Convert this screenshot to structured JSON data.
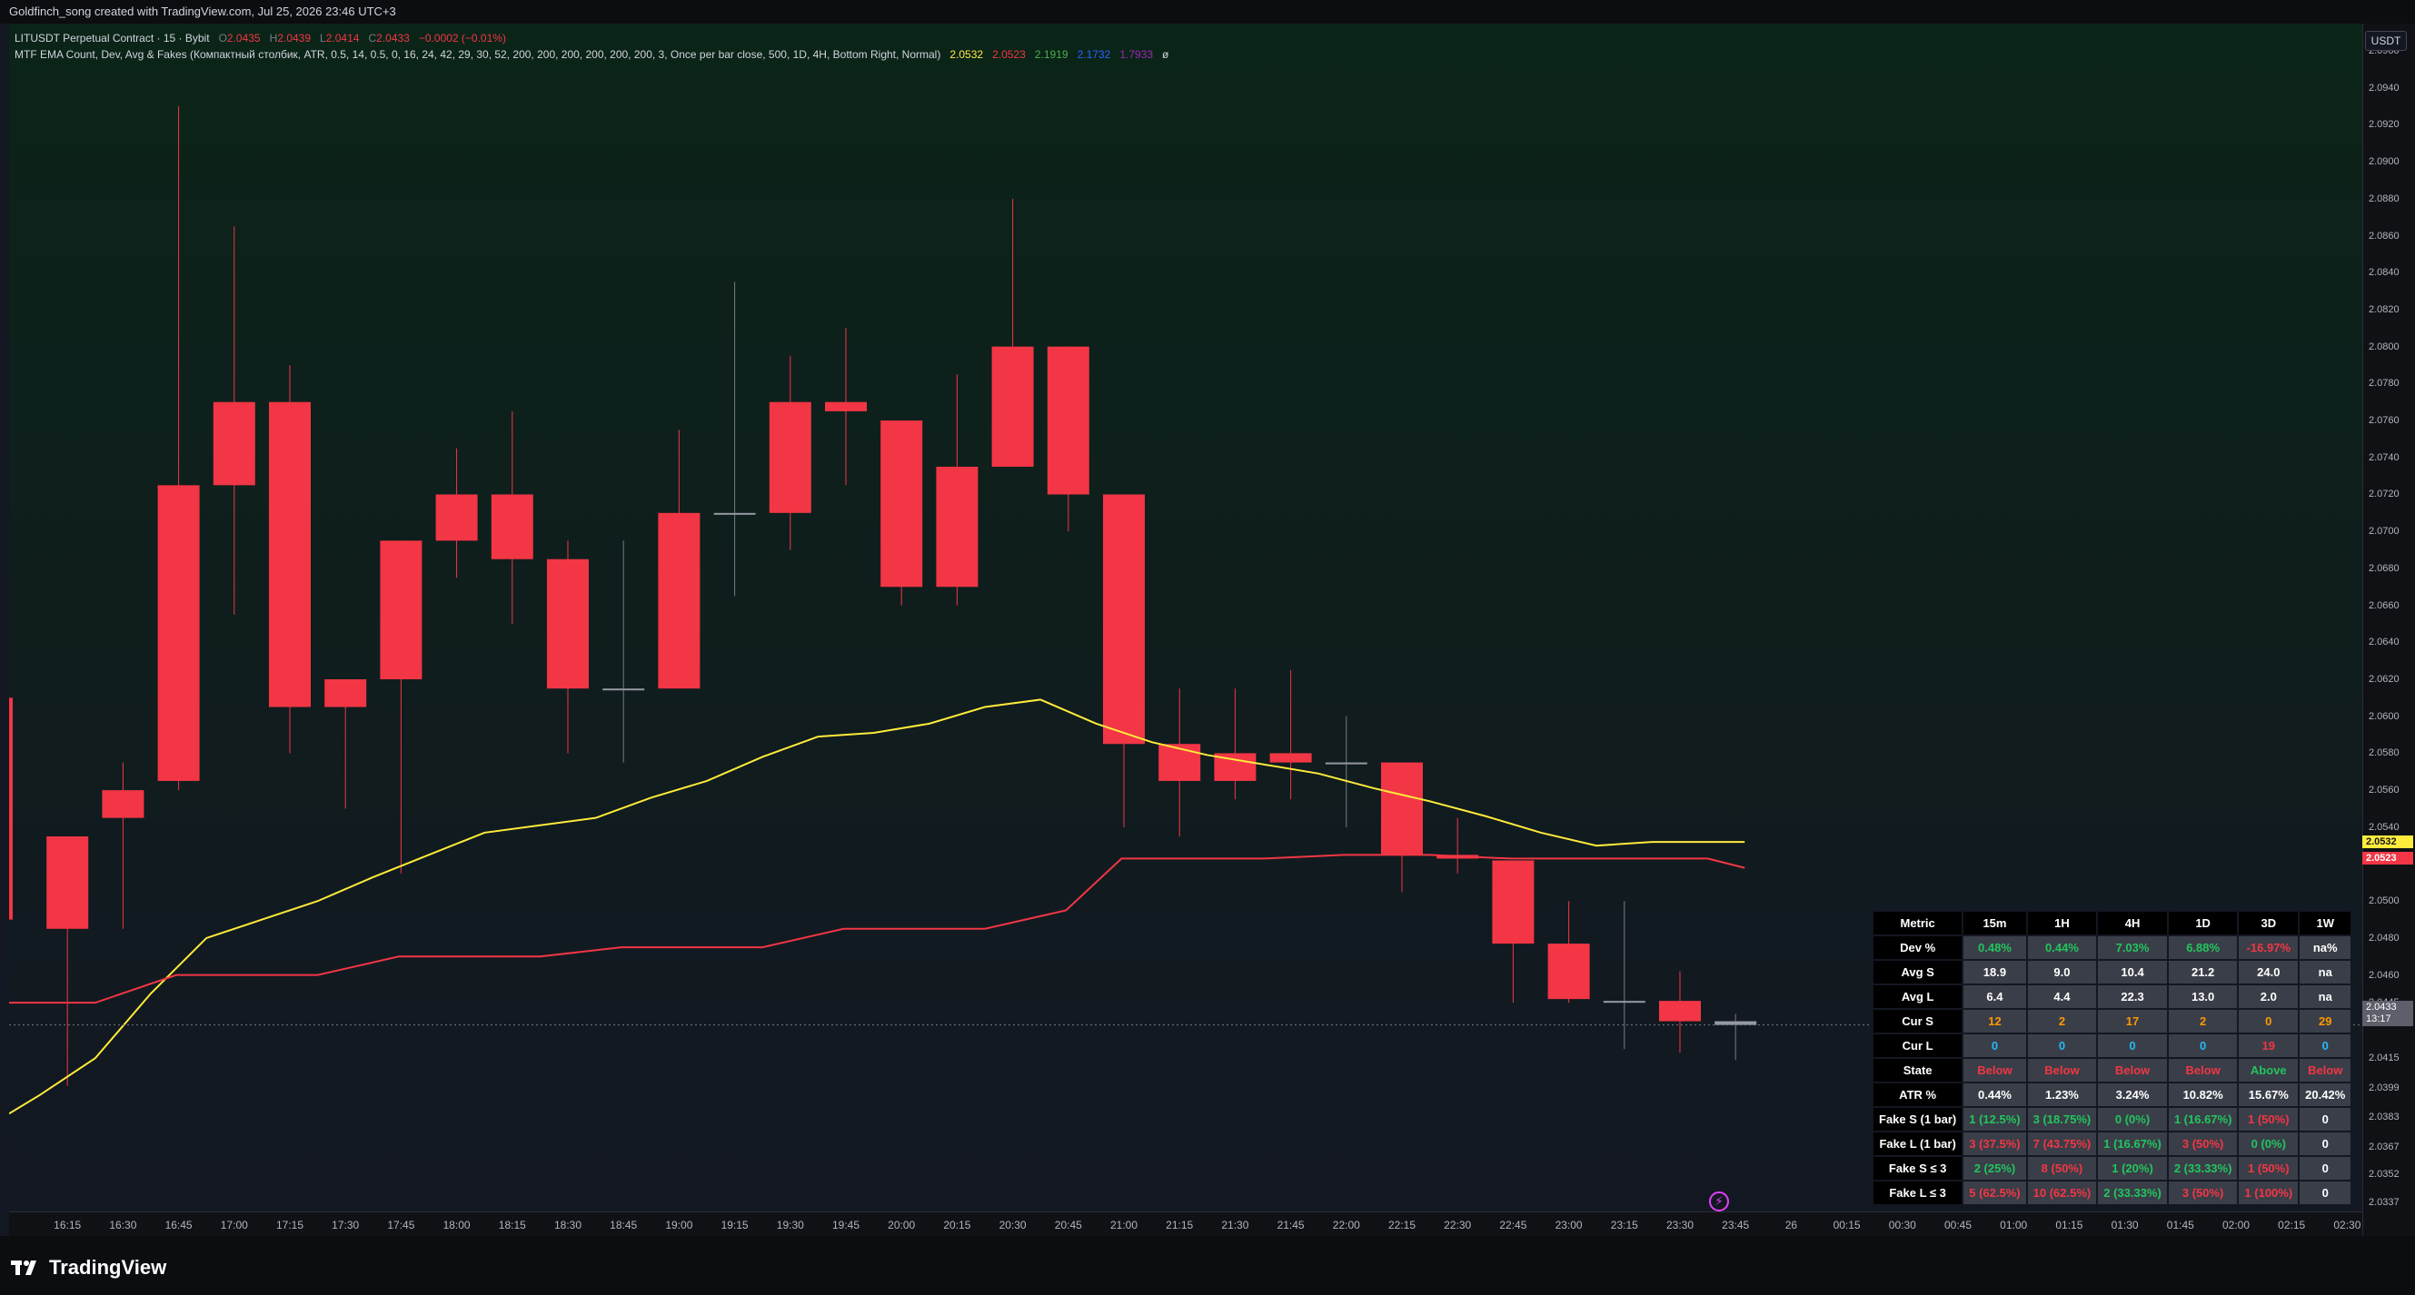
{
  "header": {
    "title": "Goldfinch_song created with TradingView.com, Jul 25, 2026 23:46 UTC+3"
  },
  "symbol_legend": {
    "symbol": "LITUSDT Perpetual Contract · 15 · Bybit",
    "o_label": "O",
    "o_value": "2.0435",
    "h_label": "H",
    "h_value": "2.0439",
    "l_label": "L",
    "l_value": "2.0414",
    "c_label": "C",
    "c_value": "2.0433",
    "change": "−0.0002 (−0.01%)"
  },
  "indicator_legend": {
    "name": "MTF EMA Count, Dev, Avg & Fakes (Компактный столбик, ATR, 0.5, 14, 0.5, 0, 16, 24, 42, 29, 30, 52, 200, 200, 200, 200, 200, 200, 3, Once per bar close, 500, 1D, 4H, Bottom Right, Normal)",
    "v1": "2.0532",
    "v2": "2.0523",
    "v3": "2.1919",
    "v4": "2.1732",
    "v5": "1.7933",
    "v6": "ø"
  },
  "price_scale": {
    "currency_button": "USDT",
    "labels": [
      "2.0960",
      "2.0940",
      "2.0920",
      "2.0900",
      "2.0880",
      "2.0860",
      "2.0840",
      "2.0820",
      "2.0800",
      "2.0780",
      "2.0760",
      "2.0740",
      "2.0720",
      "2.0700",
      "2.0680",
      "2.0660",
      "2.0640",
      "2.0620",
      "2.0600",
      "2.0580",
      "2.0560",
      "2.0540",
      "2.0500",
      "2.0480",
      "2.0460",
      "2.0445",
      "2.0415",
      "2.0399",
      "2.0383",
      "2.0367",
      "2.0352",
      "2.0337"
    ],
    "badge_ema_yellow": "2.0532",
    "badge_ema_red": "2.0523",
    "badge_current_price": "2.0433",
    "badge_countdown": "13:17"
  },
  "time_scale": {
    "labels": [
      "16:15",
      "16:30",
      "16:45",
      "17:00",
      "17:15",
      "17:30",
      "17:45",
      "18:00",
      "18:15",
      "18:30",
      "18:45",
      "19:00",
      "19:15",
      "19:30",
      "19:45",
      "20:00",
      "20:15",
      "20:30",
      "20:45",
      "21:00",
      "21:15",
      "21:30",
      "21:45",
      "22:00",
      "22:15",
      "22:30",
      "22:45",
      "23:00",
      "23:15",
      "23:30",
      "23:45",
      "26",
      "00:15",
      "00:30",
      "00:45",
      "01:00",
      "01:15",
      "01:30",
      "01:45",
      "02:00",
      "02:15",
      "02:30"
    ]
  },
  "colors": {
    "bear_candle": "#f23645",
    "bull_candle": "#26a69a",
    "ema_fast": "#ffeb3b",
    "ema_slow": "#f23645",
    "background_top": "#0b2418",
    "background_bottom": "#131722"
  },
  "chart_data": {
    "type": "candlestick",
    "timeframe": "15",
    "times": [
      "16:00",
      "16:15",
      "16:30",
      "16:45",
      "17:00",
      "17:15",
      "17:30",
      "17:45",
      "18:00",
      "18:15",
      "18:30",
      "18:45",
      "19:00",
      "19:15",
      "19:30",
      "19:45",
      "20:00",
      "20:15",
      "20:30",
      "20:45",
      "21:00",
      "21:15",
      "21:30",
      "21:45",
      "22:00",
      "22:15",
      "22:30",
      "22:45",
      "23:00",
      "23:15",
      "23:30",
      "23:45"
    ],
    "candles": [
      {
        "t": "16:00",
        "o": 2.061,
        "h": 2.061,
        "l": 2.049,
        "c": 2.049
      },
      {
        "t": "16:15",
        "o": 2.0535,
        "h": 2.0535,
        "l": 2.04,
        "c": 2.0485
      },
      {
        "t": "16:30",
        "o": 2.056,
        "h": 2.0575,
        "l": 2.0485,
        "c": 2.0545
      },
      {
        "t": "16:45",
        "o": 2.0725,
        "h": 2.093,
        "l": 2.056,
        "c": 2.0565
      },
      {
        "t": "17:00",
        "o": 2.077,
        "h": 2.0865,
        "l": 2.0655,
        "c": 2.0725
      },
      {
        "t": "17:15",
        "o": 2.077,
        "h": 2.079,
        "l": 2.058,
        "c": 2.0605
      },
      {
        "t": "17:30",
        "o": 2.062,
        "h": 2.0615,
        "l": 2.055,
        "c": 2.0605
      },
      {
        "t": "17:45",
        "o": 2.0695,
        "h": 2.0695,
        "l": 2.0515,
        "c": 2.062
      },
      {
        "t": "18:00",
        "o": 2.072,
        "h": 2.0745,
        "l": 2.0675,
        "c": 2.0695
      },
      {
        "t": "18:15",
        "o": 2.072,
        "h": 2.0765,
        "l": 2.065,
        "c": 2.0685
      },
      {
        "t": "18:30",
        "o": 2.0685,
        "h": 2.0695,
        "l": 2.058,
        "c": 2.0615
      },
      {
        "t": "18:45",
        "o": 2.0615,
        "h": 2.0695,
        "l": 2.0575,
        "c": 2.0615
      },
      {
        "t": "19:00",
        "o": 2.071,
        "h": 2.0755,
        "l": 2.0615,
        "c": 2.0615
      },
      {
        "t": "19:15",
        "o": 2.071,
        "h": 2.0835,
        "l": 2.0665,
        "c": 2.071
      },
      {
        "t": "19:30",
        "o": 2.077,
        "h": 2.0795,
        "l": 2.069,
        "c": 2.071
      },
      {
        "t": "19:45",
        "o": 2.077,
        "h": 2.081,
        "l": 2.0725,
        "c": 2.0765
      },
      {
        "t": "20:00",
        "o": 2.076,
        "h": 2.076,
        "l": 2.066,
        "c": 2.067
      },
      {
        "t": "20:15",
        "o": 2.0735,
        "h": 2.0785,
        "l": 2.066,
        "c": 2.067
      },
      {
        "t": "20:30",
        "o": 2.08,
        "h": 2.088,
        "l": 2.0735,
        "c": 2.0735
      },
      {
        "t": "20:45",
        "o": 2.08,
        "h": 2.08,
        "l": 2.07,
        "c": 2.072
      },
      {
        "t": "21:00",
        "o": 2.072,
        "h": 2.072,
        "l": 2.054,
        "c": 2.0585
      },
      {
        "t": "21:15",
        "o": 2.0585,
        "h": 2.0615,
        "l": 2.0535,
        "c": 2.0565
      },
      {
        "t": "21:30",
        "o": 2.058,
        "h": 2.0615,
        "l": 2.0555,
        "c": 2.0565
      },
      {
        "t": "21:45",
        "o": 2.058,
        "h": 2.0625,
        "l": 2.0555,
        "c": 2.0575
      },
      {
        "t": "22:00",
        "o": 2.0575,
        "h": 2.06,
        "l": 2.054,
        "c": 2.0575
      },
      {
        "t": "22:15",
        "o": 2.0575,
        "h": 2.0575,
        "l": 2.0505,
        "c": 2.0525
      },
      {
        "t": "22:30",
        "o": 2.0525,
        "h": 2.0545,
        "l": 2.0515,
        "c": 2.0523
      },
      {
        "t": "22:45",
        "o": 2.0522,
        "h": 2.0522,
        "l": 2.0445,
        "c": 2.0477
      },
      {
        "t": "23:00",
        "o": 2.0477,
        "h": 2.05,
        "l": 2.0445,
        "c": 2.0447
      },
      {
        "t": "23:15",
        "o": 2.0446,
        "h": 2.05,
        "l": 2.042,
        "c": 2.0445
      },
      {
        "t": "23:30",
        "o": 2.0446,
        "h": 2.0462,
        "l": 2.0418,
        "c": 2.0435
      },
      {
        "t": "23:45",
        "o": 2.0435,
        "h": 2.0439,
        "l": 2.0414,
        "c": 2.0433
      }
    ],
    "series": [
      {
        "values": [
          2.0385,
          2.0395,
          2.0415,
          2.045,
          2.048,
          2.049,
          2.05,
          2.0513,
          2.0525,
          2.0537,
          2.0541,
          2.0545,
          2.0556,
          2.0565,
          2.0578,
          2.0589,
          2.0591,
          2.0596,
          2.0605,
          2.0609,
          2.0596,
          2.0586,
          2.0579,
          2.0574,
          2.0569,
          2.0561,
          2.0554,
          2.0546,
          2.0537,
          2.053,
          2.0532,
          2.0532
        ]
      },
      {
        "values": [
          2.0445,
          2.0445,
          2.0445,
          2.046,
          2.046,
          2.046,
          2.046,
          2.047,
          2.047,
          2.047,
          2.047,
          2.0475,
          2.0475,
          2.0475,
          2.0475,
          2.0485,
          2.0485,
          2.0485,
          2.0485,
          2.0495,
          2.0523,
          2.0523,
          2.0523,
          2.0523,
          2.0525,
          2.0525,
          2.0525,
          2.0523,
          2.0523,
          2.0523,
          2.0523,
          2.0523
        ]
      }
    ],
    "ylim": [
      2.0337,
      2.096
    ],
    "current_price": 2.0433
  },
  "metrics_table": {
    "headers": [
      "Metric",
      "15m",
      "1H",
      "4H",
      "1D",
      "3D",
      "1W"
    ],
    "rows": [
      {
        "label": "Dev %",
        "cells": [
          {
            "v": "0.48%",
            "c": "green"
          },
          {
            "v": "0.44%",
            "c": "green"
          },
          {
            "v": "7.03%",
            "c": "green"
          },
          {
            "v": "6.88%",
            "c": "green"
          },
          {
            "v": "-16.97%",
            "c": "red"
          },
          {
            "v": "na%",
            "c": "white"
          }
        ]
      },
      {
        "label": "Avg S",
        "cells": [
          {
            "v": "18.9",
            "c": "white"
          },
          {
            "v": "9.0",
            "c": "white"
          },
          {
            "v": "10.4",
            "c": "white"
          },
          {
            "v": "21.2",
            "c": "white"
          },
          {
            "v": "24.0",
            "c": "white"
          },
          {
            "v": "na",
            "c": "white"
          }
        ]
      },
      {
        "label": "Avg L",
        "cells": [
          {
            "v": "6.4",
            "c": "white"
          },
          {
            "v": "4.4",
            "c": "white"
          },
          {
            "v": "22.3",
            "c": "white"
          },
          {
            "v": "13.0",
            "c": "white"
          },
          {
            "v": "2.0",
            "c": "white"
          },
          {
            "v": "na",
            "c": "white"
          }
        ]
      },
      {
        "label": "Cur S",
        "cells": [
          {
            "v": "12",
            "c": "orange"
          },
          {
            "v": "2",
            "c": "orange"
          },
          {
            "v": "17",
            "c": "orange"
          },
          {
            "v": "2",
            "c": "orange"
          },
          {
            "v": "0",
            "c": "orange"
          },
          {
            "v": "29",
            "c": "orange"
          }
        ]
      },
      {
        "label": "Cur L",
        "cells": [
          {
            "v": "0",
            "c": "blue"
          },
          {
            "v": "0",
            "c": "blue"
          },
          {
            "v": "0",
            "c": "blue"
          },
          {
            "v": "0",
            "c": "blue"
          },
          {
            "v": "19",
            "c": "red"
          },
          {
            "v": "0",
            "c": "blue"
          }
        ]
      },
      {
        "label": "State",
        "cells": [
          {
            "v": "Below",
            "c": "red"
          },
          {
            "v": "Below",
            "c": "red"
          },
          {
            "v": "Below",
            "c": "red"
          },
          {
            "v": "Below",
            "c": "red"
          },
          {
            "v": "Above",
            "c": "green"
          },
          {
            "v": "Below",
            "c": "red"
          }
        ]
      },
      {
        "label": "ATR %",
        "cells": [
          {
            "v": "0.44%",
            "c": "white"
          },
          {
            "v": "1.23%",
            "c": "white"
          },
          {
            "v": "3.24%",
            "c": "white"
          },
          {
            "v": "10.82%",
            "c": "white"
          },
          {
            "v": "15.67%",
            "c": "white"
          },
          {
            "v": "20.42%",
            "c": "white"
          }
        ]
      },
      {
        "label": "Fake S (1 bar)",
        "cells": [
          {
            "v": "1 (12.5%)",
            "c": "green"
          },
          {
            "v": "3 (18.75%)",
            "c": "green"
          },
          {
            "v": "0 (0%)",
            "c": "green"
          },
          {
            "v": "1 (16.67%)",
            "c": "green"
          },
          {
            "v": "1 (50%)",
            "c": "red"
          },
          {
            "v": "0",
            "c": "white"
          }
        ]
      },
      {
        "label": "Fake L (1 bar)",
        "cells": [
          {
            "v": "3 (37.5%)",
            "c": "red"
          },
          {
            "v": "7 (43.75%)",
            "c": "red"
          },
          {
            "v": "1 (16.67%)",
            "c": "green"
          },
          {
            "v": "3 (50%)",
            "c": "red"
          },
          {
            "v": "0 (0%)",
            "c": "green"
          },
          {
            "v": "0",
            "c": "white"
          }
        ]
      },
      {
        "label": "Fake S ≤ 3",
        "cells": [
          {
            "v": "2 (25%)",
            "c": "green"
          },
          {
            "v": "8 (50%)",
            "c": "red"
          },
          {
            "v": "1 (20%)",
            "c": "green"
          },
          {
            "v": "2 (33.33%)",
            "c": "green"
          },
          {
            "v": "1 (50%)",
            "c": "red"
          },
          {
            "v": "0",
            "c": "white"
          }
        ]
      },
      {
        "label": "Fake L ≤ 3",
        "cells": [
          {
            "v": "5 (62.5%)",
            "c": "red"
          },
          {
            "v": "10 (62.5%)",
            "c": "red"
          },
          {
            "v": "2 (33.33%)",
            "c": "green"
          },
          {
            "v": "3 (50%)",
            "c": "red"
          },
          {
            "v": "1 (100%)",
            "c": "red"
          },
          {
            "v": "0",
            "c": "white"
          }
        ]
      }
    ]
  },
  "footer": {
    "brand": "TradingView"
  }
}
